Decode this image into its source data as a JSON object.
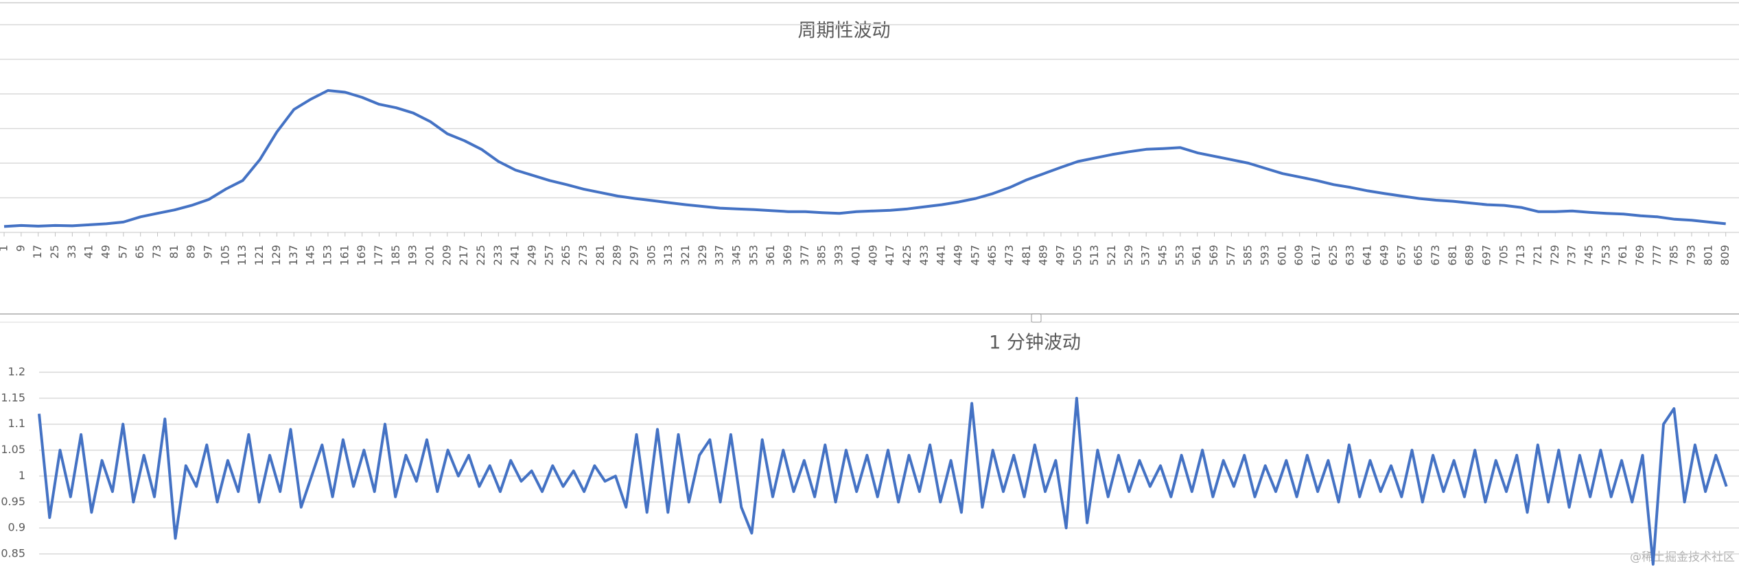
{
  "chart_data": [
    {
      "type": "line",
      "title": "周期性波动",
      "color": "#4472c4",
      "grid": true,
      "ytick_labels": false,
      "xlim": [
        1,
        812
      ],
      "ylim": [
        0,
        6
      ],
      "yticks": [
        0,
        1,
        2,
        3,
        4,
        5,
        6
      ],
      "xticks": [
        1,
        9,
        17,
        25,
        33,
        41,
        49,
        57,
        65,
        73,
        81,
        89,
        97,
        105,
        113,
        121,
        129,
        137,
        145,
        153,
        161,
        169,
        177,
        185,
        193,
        201,
        209,
        217,
        225,
        233,
        241,
        249,
        257,
        265,
        273,
        281,
        289,
        297,
        305,
        313,
        321,
        329,
        337,
        345,
        353,
        361,
        369,
        377,
        385,
        393,
        401,
        409,
        417,
        425,
        433,
        441,
        449,
        457,
        465,
        473,
        481,
        489,
        497,
        505,
        513,
        521,
        529,
        537,
        545,
        553,
        561,
        569,
        577,
        585,
        593,
        601,
        609,
        617,
        625,
        633,
        641,
        649,
        657,
        665,
        673,
        681,
        689,
        697,
        705,
        713,
        721,
        729,
        737,
        745,
        753,
        761,
        769,
        777,
        785,
        793,
        801,
        809
      ],
      "x": [
        1,
        9,
        17,
        25,
        33,
        41,
        49,
        57,
        65,
        73,
        81,
        89,
        97,
        105,
        113,
        121,
        129,
        137,
        145,
        153,
        161,
        169,
        177,
        185,
        193,
        201,
        209,
        217,
        225,
        233,
        241,
        249,
        257,
        265,
        273,
        281,
        289,
        297,
        305,
        313,
        321,
        329,
        337,
        345,
        353,
        361,
        369,
        377,
        385,
        393,
        401,
        409,
        417,
        425,
        433,
        441,
        449,
        457,
        465,
        473,
        481,
        489,
        497,
        505,
        513,
        521,
        529,
        537,
        545,
        553,
        561,
        569,
        577,
        585,
        593,
        601,
        609,
        617,
        625,
        633,
        641,
        649,
        657,
        665,
        673,
        681,
        689,
        697,
        705,
        713,
        721,
        729,
        737,
        745,
        753,
        761,
        769,
        777,
        785,
        793,
        801,
        809
      ],
      "values": [
        0.17,
        0.2,
        0.18,
        0.2,
        0.19,
        0.22,
        0.25,
        0.3,
        0.45,
        0.55,
        0.65,
        0.78,
        0.95,
        1.25,
        1.5,
        2.1,
        2.9,
        3.55,
        3.85,
        4.1,
        4.05,
        3.9,
        3.7,
        3.6,
        3.45,
        3.2,
        2.85,
        2.65,
        2.4,
        2.05,
        1.8,
        1.65,
        1.5,
        1.38,
        1.25,
        1.15,
        1.05,
        0.98,
        0.92,
        0.86,
        0.8,
        0.75,
        0.7,
        0.68,
        0.66,
        0.63,
        0.6,
        0.6,
        0.57,
        0.55,
        0.6,
        0.62,
        0.64,
        0.68,
        0.74,
        0.8,
        0.88,
        0.98,
        1.12,
        1.3,
        1.52,
        1.7,
        1.88,
        2.05,
        2.15,
        2.25,
        2.33,
        2.4,
        2.42,
        2.45,
        2.3,
        2.2,
        2.1,
        2.0,
        1.85,
        1.7,
        1.6,
        1.5,
        1.38,
        1.3,
        1.2,
        1.12,
        1.05,
        0.98,
        0.93,
        0.9,
        0.85,
        0.8,
        0.78,
        0.72,
        0.6,
        0.6,
        0.62,
        0.58,
        0.55,
        0.53,
        0.48,
        0.45,
        0.38,
        0.35,
        0.3,
        0.25
      ]
    },
    {
      "type": "line",
      "title": "1 分钟波动",
      "color": "#4472c4",
      "grid": true,
      "ytick_labels": true,
      "xlim": [
        1,
        812
      ],
      "ylim": [
        0.85,
        1.2
      ],
      "yticks": [
        0.85,
        0.9,
        0.95,
        1,
        1.05,
        1.1,
        1.15,
        1.2
      ],
      "x": [
        1,
        6,
        11,
        16,
        21,
        26,
        31,
        36,
        41,
        46,
        51,
        56,
        61,
        66,
        71,
        76,
        81,
        86,
        91,
        96,
        101,
        106,
        111,
        116,
        121,
        126,
        131,
        136,
        141,
        146,
        151,
        156,
        161,
        166,
        171,
        176,
        181,
        186,
        191,
        196,
        201,
        206,
        211,
        216,
        221,
        226,
        231,
        236,
        241,
        246,
        251,
        256,
        261,
        266,
        271,
        276,
        281,
        286,
        291,
        296,
        301,
        306,
        311,
        316,
        321,
        326,
        331,
        336,
        341,
        346,
        351,
        356,
        361,
        366,
        371,
        376,
        381,
        386,
        391,
        396,
        401,
        406,
        411,
        416,
        421,
        426,
        431,
        436,
        441,
        446,
        451,
        456,
        461,
        466,
        471,
        476,
        481,
        486,
        491,
        496,
        501,
        506,
        511,
        516,
        521,
        526,
        531,
        536,
        541,
        546,
        551,
        556,
        561,
        566,
        571,
        576,
        581,
        586,
        591,
        596,
        601,
        606,
        611,
        616,
        621,
        626,
        631,
        636,
        641,
        646,
        651,
        656,
        661,
        666,
        671,
        676,
        681,
        686,
        691,
        696,
        701,
        706,
        711,
        716,
        721,
        726,
        731,
        736,
        741,
        746,
        751,
        756,
        761,
        766,
        771,
        776,
        781,
        786,
        791,
        796,
        801,
        806
      ],
      "values": [
        1.12,
        0.92,
        1.05,
        0.96,
        1.08,
        0.93,
        1.03,
        0.97,
        1.1,
        0.95,
        1.04,
        0.96,
        1.11,
        0.88,
        1.02,
        0.98,
        1.06,
        0.95,
        1.03,
        0.97,
        1.08,
        0.95,
        1.04,
        0.97,
        1.09,
        0.94,
        1.0,
        1.06,
        0.96,
        1.07,
        0.98,
        1.05,
        0.97,
        1.1,
        0.96,
        1.04,
        0.99,
        1.07,
        0.97,
        1.05,
        1.0,
        1.04,
        0.98,
        1.02,
        0.97,
        1.03,
        0.99,
        1.01,
        0.97,
        1.02,
        0.98,
        1.01,
        0.97,
        1.02,
        0.99,
        1.0,
        0.94,
        1.08,
        0.93,
        1.09,
        0.93,
        1.08,
        0.95,
        1.04,
        1.07,
        0.95,
        1.08,
        0.94,
        0.89,
        1.07,
        0.96,
        1.05,
        0.97,
        1.03,
        0.96,
        1.06,
        0.95,
        1.05,
        0.97,
        1.04,
        0.96,
        1.05,
        0.95,
        1.04,
        0.97,
        1.06,
        0.95,
        1.03,
        0.93,
        1.14,
        0.94,
        1.05,
        0.97,
        1.04,
        0.96,
        1.06,
        0.97,
        1.03,
        0.9,
        1.15,
        0.91,
        1.05,
        0.96,
        1.04,
        0.97,
        1.03,
        0.98,
        1.02,
        0.96,
        1.04,
        0.97,
        1.05,
        0.96,
        1.03,
        0.98,
        1.04,
        0.96,
        1.02,
        0.97,
        1.03,
        0.96,
        1.04,
        0.97,
        1.03,
        0.95,
        1.06,
        0.96,
        1.03,
        0.97,
        1.02,
        0.96,
        1.05,
        0.95,
        1.04,
        0.97,
        1.03,
        0.96,
        1.05,
        0.95,
        1.03,
        0.97,
        1.04,
        0.93,
        1.06,
        0.95,
        1.05,
        0.94,
        1.04,
        0.96,
        1.05,
        0.96,
        1.03,
        0.95,
        1.04,
        0.83,
        1.1,
        1.13,
        0.95,
        1.06,
        0.97,
        1.04,
        0.98
      ]
    }
  ],
  "watermark": "@稀土掘金技术社区"
}
